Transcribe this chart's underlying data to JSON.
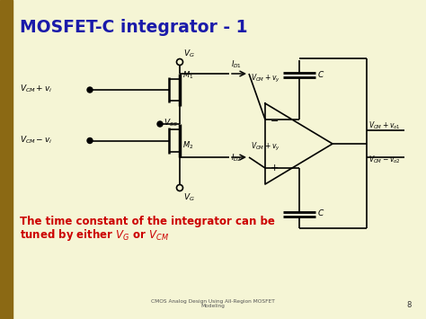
{
  "title": "MOSFET-C integrator - 1",
  "title_color": "#1a1aaa",
  "bg_color": "#f5f5d5",
  "left_bar_color": "#8b6914",
  "footer_text": "CMOS Analog Design Using All-Region MOSFET\nModeling",
  "page_number": "8",
  "annotation_color": "#cc0000",
  "annotation_line1": "The time constant of the integrator can be",
  "annotation_line2": "tuned by either $V_G$ or $V_{CM}$"
}
